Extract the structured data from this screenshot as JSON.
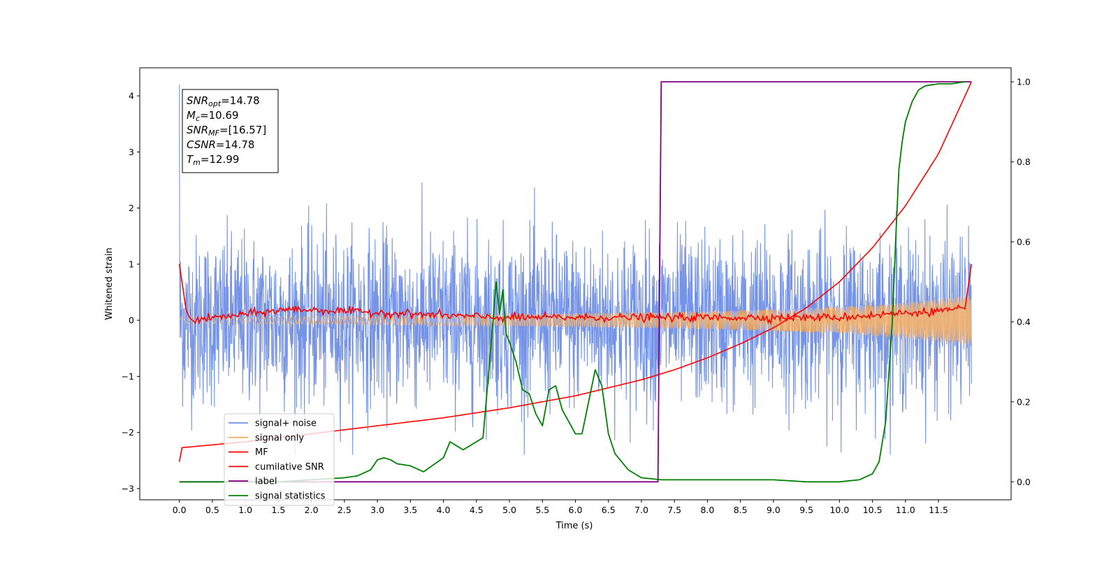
{
  "chart_data": {
    "type": "line",
    "xlabel": "Time (s)",
    "ylabel": "Whitened strain",
    "xlim": [
      -0.6,
      12.6
    ],
    "ylim": [
      -3.2,
      4.5
    ],
    "y2lim": [
      -0.045,
      1.035
    ],
    "x_ticks": [
      "0.0",
      "0.5",
      "1.0",
      "1.5",
      "2.0",
      "2.5",
      "3.0",
      "3.5",
      "4.0",
      "4.5",
      "5.0",
      "5.5",
      "6.0",
      "6.5",
      "7.0",
      "7.5",
      "8.0",
      "8.5",
      "9.0",
      "9.5",
      "10.0",
      "10.5",
      "11.0",
      "11.5"
    ],
    "y_ticks": [
      "−3",
      "−2",
      "−1",
      "0",
      "1",
      "2",
      "3",
      "4"
    ],
    "y2_ticks": [
      "0.0",
      "0.2",
      "0.4",
      "0.6",
      "0.8",
      "1.0"
    ],
    "grid": false,
    "legend_position": "bottom-left",
    "annotation": {
      "lines": [
        {
          "sym": "SNR",
          "sub": "opt",
          "val": "=14.78"
        },
        {
          "sym": "M",
          "sub": "c",
          "val": "=10.69"
        },
        {
          "sym": "SNR",
          "sub": "MF",
          "val": "=[16.57]"
        },
        {
          "sym": "CSNR",
          "sub": "",
          "val": "=14.78"
        },
        {
          "sym": "T",
          "sub": "m",
          "val": "=12.99"
        }
      ]
    },
    "series": [
      {
        "name": "signal+ noise",
        "color": "#6f8ee6",
        "axis": "left",
        "description_values": "noise-dominated strain, roughly between -2.3 and 2.6, spike to 4.2 at t=0",
        "envelope": {
          "x": [
            0,
            12
          ],
          "upper": [
            2.0,
            2.4
          ],
          "lower": [
            -2.0,
            -2.2
          ]
        }
      },
      {
        "name": "signal only",
        "color": "#f5b26b",
        "axis": "left",
        "envelope": {
          "x": [
            0.0,
            2.0,
            4.0,
            6.0,
            8.0,
            10.0,
            11.0,
            12.0
          ],
          "amp": [
            0.05,
            0.07,
            0.09,
            0.12,
            0.16,
            0.24,
            0.32,
            0.45
          ]
        }
      },
      {
        "name": "MF",
        "color": "#ff0000",
        "axis": "left",
        "x": [
          0.0,
          0.05,
          0.1,
          0.15,
          0.2,
          1.7,
          4.8,
          10.0,
          11.9,
          11.95,
          12.0
        ],
        "y": [
          1.0,
          0.6,
          0.2,
          0.05,
          0.0,
          0.2,
          0.05,
          0.05,
          0.2,
          0.6,
          1.0
        ]
      },
      {
        "name": "cumilative SNR",
        "color": "#ff0000",
        "axis": "right",
        "x": [
          0.0,
          0.02,
          1.0,
          2.0,
          3.0,
          4.0,
          5.0,
          6.0,
          7.0,
          7.5,
          8.0,
          8.5,
          9.0,
          9.5,
          10.0,
          10.5,
          11.0,
          11.5,
          12.0
        ],
        "y": [
          0.05,
          0.085,
          0.1,
          0.12,
          0.14,
          0.16,
          0.185,
          0.215,
          0.255,
          0.28,
          0.31,
          0.345,
          0.385,
          0.435,
          0.5,
          0.585,
          0.69,
          0.82,
          1.0
        ]
      },
      {
        "name": "label",
        "color": "#800080",
        "axis": "right",
        "x": [
          0.0,
          7.25,
          7.3,
          12.0
        ],
        "y": [
          0.0,
          0.0,
          1.0,
          1.0
        ]
      },
      {
        "name": "signal statistics",
        "color": "#008000",
        "axis": "right",
        "x": [
          0.0,
          0.5,
          1.0,
          1.5,
          2.0,
          2.5,
          2.7,
          2.9,
          3.0,
          3.1,
          3.2,
          3.3,
          3.5,
          3.7,
          4.0,
          4.1,
          4.2,
          4.3,
          4.5,
          4.6,
          4.7,
          4.8,
          4.85,
          4.9,
          4.95,
          5.0,
          5.1,
          5.2,
          5.3,
          5.4,
          5.5,
          5.6,
          5.7,
          5.8,
          5.9,
          6.0,
          6.1,
          6.2,
          6.3,
          6.4,
          6.5,
          6.6,
          6.8,
          7.0,
          7.3,
          8.0,
          8.5,
          9.0,
          9.5,
          10.0,
          10.3,
          10.5,
          10.6,
          10.7,
          10.8,
          10.85,
          10.9,
          10.95,
          11.0,
          11.1,
          11.2,
          11.3,
          11.5,
          11.7,
          11.9
        ],
        "y": [
          0.0,
          0.0,
          0.0,
          0.0,
          0.005,
          0.01,
          0.015,
          0.03,
          0.055,
          0.06,
          0.055,
          0.045,
          0.04,
          0.025,
          0.06,
          0.1,
          0.09,
          0.08,
          0.1,
          0.11,
          0.3,
          0.5,
          0.42,
          0.48,
          0.37,
          0.35,
          0.3,
          0.23,
          0.22,
          0.17,
          0.14,
          0.23,
          0.24,
          0.18,
          0.15,
          0.12,
          0.12,
          0.2,
          0.28,
          0.24,
          0.12,
          0.07,
          0.03,
          0.01,
          0.005,
          0.005,
          0.005,
          0.005,
          0.0,
          0.0,
          0.005,
          0.02,
          0.05,
          0.15,
          0.4,
          0.6,
          0.78,
          0.85,
          0.9,
          0.95,
          0.98,
          0.99,
          0.995,
          0.995,
          1.0
        ]
      }
    ]
  }
}
